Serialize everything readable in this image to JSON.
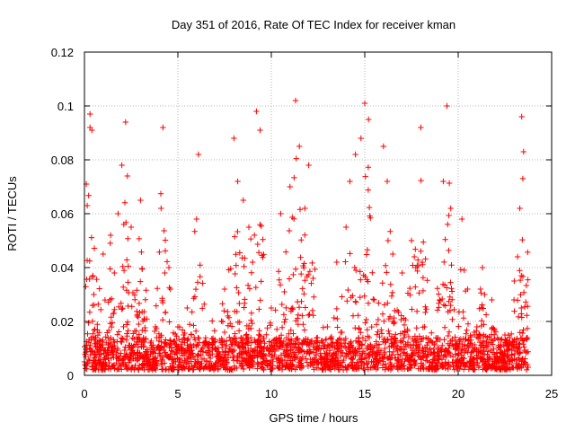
{
  "chart_data": {
    "type": "scatter",
    "title": "Day 351 of 2016, Rate Of TEC Index for receiver kman",
    "xlabel": "GPS time / hours",
    "ylabel": "ROTI / TECUs",
    "xlim": [
      0,
      25
    ],
    "ylim": [
      0,
      0.12
    ],
    "xticks": [
      "0",
      "5",
      "10",
      "15",
      "20",
      "25"
    ],
    "xtick_values": [
      0,
      5,
      10,
      15,
      20,
      25
    ],
    "yticks": [
      "0",
      "0.02",
      "0.04",
      "0.06",
      "0.08",
      "0.1",
      "0.12"
    ],
    "ytick_values": [
      0,
      0.02,
      0.04,
      0.06,
      0.08,
      0.1,
      0.12
    ],
    "grid": true,
    "marker": "plus",
    "color": "#ff0000",
    "series": [
      {
        "values_sample": [
          [
            0.0,
            0.005
          ],
          [
            0.1,
            0.071
          ],
          [
            0.15,
            0.063
          ],
          [
            0.3,
            0.097
          ],
          [
            0.3,
            0.092
          ],
          [
            0.4,
            0.091
          ],
          [
            0.5,
            0.03
          ],
          [
            0.7,
            0.012
          ],
          [
            1.0,
            0.045
          ],
          [
            1.4,
            0.052
          ],
          [
            1.6,
            0.038
          ],
          [
            1.8,
            0.06
          ],
          [
            2.0,
            0.078
          ],
          [
            2.2,
            0.094
          ],
          [
            2.3,
            0.074
          ],
          [
            2.5,
            0.055
          ],
          [
            3.0,
            0.065
          ],
          [
            3.3,
            0.008
          ],
          [
            3.8,
            0.018
          ],
          [
            4.1,
            0.062
          ],
          [
            4.2,
            0.092
          ],
          [
            4.3,
            0.038
          ],
          [
            4.6,
            0.032
          ],
          [
            5.0,
            0.018
          ],
          [
            5.5,
            0.025
          ],
          [
            6.0,
            0.058
          ],
          [
            6.1,
            0.082
          ],
          [
            6.3,
            0.006
          ],
          [
            7.0,
            0.01
          ],
          [
            7.5,
            0.032
          ],
          [
            8.0,
            0.088
          ],
          [
            8.2,
            0.072
          ],
          [
            8.5,
            0.065
          ],
          [
            8.8,
            0.055
          ],
          [
            9.0,
            0.042
          ],
          [
            9.2,
            0.098
          ],
          [
            9.4,
            0.091
          ],
          [
            9.6,
            0.008
          ],
          [
            10.0,
            0.025
          ],
          [
            10.5,
            0.06
          ],
          [
            11.0,
            0.07
          ],
          [
            11.3,
            0.102
          ],
          [
            11.5,
            0.085
          ],
          [
            11.8,
            0.062
          ],
          [
            12.0,
            0.078
          ],
          [
            12.5,
            0.01
          ],
          [
            13.0,
            0.018
          ],
          [
            13.5,
            0.042
          ],
          [
            14.0,
            0.055
          ],
          [
            14.2,
            0.072
          ],
          [
            14.5,
            0.082
          ],
          [
            14.8,
            0.088
          ],
          [
            15.0,
            0.101
          ],
          [
            15.2,
            0.095
          ],
          [
            15.5,
            0.028
          ],
          [
            16.0,
            0.085
          ],
          [
            16.2,
            0.072
          ],
          [
            16.5,
            0.045
          ],
          [
            17.0,
            0.038
          ],
          [
            17.5,
            0.05
          ],
          [
            18.0,
            0.092
          ],
          [
            18.2,
            0.018
          ],
          [
            18.5,
            0.01
          ],
          [
            19.0,
            0.028
          ],
          [
            19.2,
            0.072
          ],
          [
            19.4,
            0.1
          ],
          [
            19.6,
            0.062
          ],
          [
            20.0,
            0.003
          ],
          [
            20.2,
            0.058
          ],
          [
            20.5,
            0.032
          ],
          [
            21.0,
            0.018
          ],
          [
            21.3,
            0.04
          ],
          [
            21.8,
            0.028
          ],
          [
            22.0,
            0.006
          ],
          [
            22.5,
            0.015
          ],
          [
            23.0,
            0.035
          ],
          [
            23.3,
            0.062
          ],
          [
            23.4,
            0.096
          ],
          [
            23.5,
            0.083
          ],
          [
            23.6,
            0.004
          ],
          [
            23.7,
            0.003
          ]
        ]
      }
    ]
  }
}
